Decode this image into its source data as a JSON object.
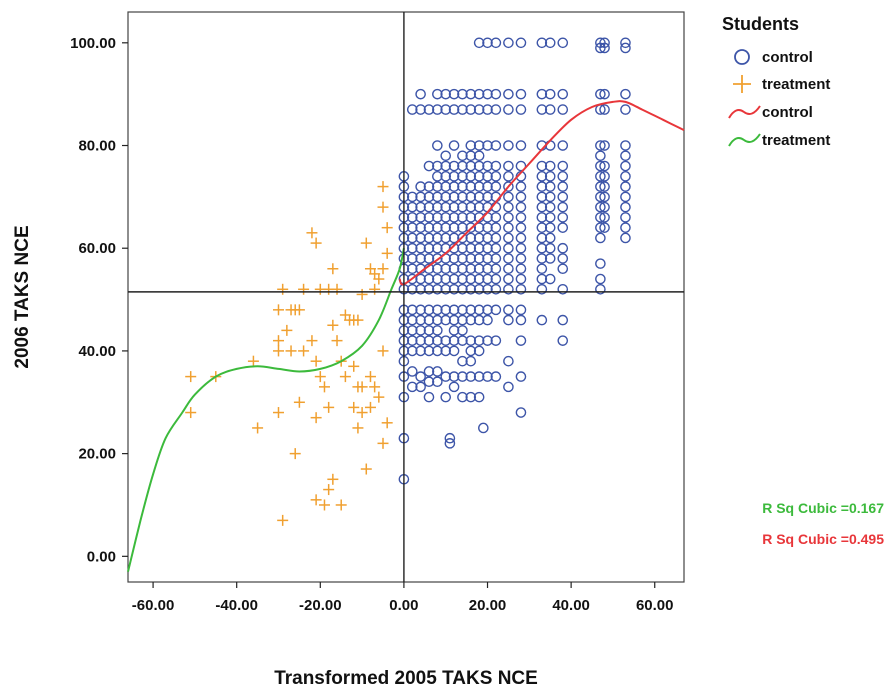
{
  "chart_data": {
    "type": "scatter",
    "xlabel": "Transformed 2005 TAKS NCE",
    "ylabel": "2006 TAKS NCE",
    "xlim": [
      -66,
      67
    ],
    "ylim": [
      -5,
      106
    ],
    "x_ticks": [
      -60,
      -40,
      -20,
      0,
      20,
      40,
      60
    ],
    "y_ticks": [
      0,
      20,
      40,
      60,
      80,
      100
    ],
    "x_tick_labels": [
      "-60.00",
      "-40.00",
      "-20.00",
      "0.00",
      "20.00",
      "40.00",
      "60.00"
    ],
    "y_tick_labels": [
      "0.00",
      "20.00",
      "40.00",
      "60.00",
      "80.00",
      "100.00"
    ],
    "reference_lines": {
      "x": 0,
      "y": 51.5
    },
    "grid": false,
    "legend": {
      "title": "Students",
      "placement": "right",
      "items": [
        {
          "label": "control",
          "marker": "circle",
          "color": "#3d55a8"
        },
        {
          "label": "treatment",
          "marker": "plus",
          "color": "#f0a030"
        },
        {
          "label": "control",
          "marker": "line",
          "color": "#e8363a"
        },
        {
          "label": "treatment",
          "marker": "line",
          "color": "#3cba3c"
        }
      ]
    },
    "annotations": [
      {
        "text": "R Sq Cubic =0.167",
        "color": "#3cba3c"
      },
      {
        "text": "R Sq Cubic =0.495",
        "color": "#e8363a"
      }
    ],
    "colors": {
      "control": "#3d55a8",
      "treatment": "#f0a030",
      "control_fit": "#e8363a",
      "treatment_fit": "#3cba3c"
    },
    "series": [
      {
        "name": "control",
        "marker": "circle",
        "columns": [
          {
            "x": 0,
            "y": [
              15,
              23,
              31,
              35,
              38,
              40,
              42,
              44,
              46,
              48,
              52,
              54,
              56,
              58,
              60,
              62,
              64,
              66,
              68,
              70,
              72,
              74
            ]
          },
          {
            "x": 2,
            "y": [
              33,
              36,
              40,
              42,
              44,
              46,
              48,
              52,
              54,
              56,
              58,
              60,
              62,
              64,
              66,
              68,
              70,
              87
            ]
          },
          {
            "x": 4,
            "y": [
              33,
              35,
              40,
              42,
              44,
              46,
              48,
              52,
              54,
              56,
              58,
              60,
              62,
              64,
              66,
              68,
              70,
              72,
              87,
              90
            ]
          },
          {
            "x": 6,
            "y": [
              31,
              34,
              36,
              40,
              42,
              44,
              46,
              48,
              52,
              54,
              56,
              58,
              60,
              62,
              64,
              66,
              68,
              70,
              72,
              76,
              87
            ]
          },
          {
            "x": 8,
            "y": [
              34,
              36,
              40,
              42,
              44,
              46,
              48,
              52,
              54,
              56,
              58,
              60,
              62,
              64,
              66,
              68,
              70,
              72,
              74,
              76,
              80,
              87,
              90
            ]
          },
          {
            "x": 10,
            "y": [
              31,
              35,
              40,
              42,
              46,
              48,
              52,
              54,
              56,
              58,
              60,
              62,
              64,
              66,
              68,
              70,
              72,
              74,
              76,
              78,
              87,
              90
            ]
          },
          {
            "x": 11,
            "y": [
              22,
              23
            ]
          },
          {
            "x": 12,
            "y": [
              33,
              35,
              40,
              42,
              44,
              46,
              48,
              52,
              54,
              56,
              58,
              60,
              62,
              64,
              66,
              68,
              70,
              72,
              74,
              76,
              80,
              87,
              90
            ]
          },
          {
            "x": 14,
            "y": [
              31,
              35,
              38,
              42,
              44,
              46,
              48,
              52,
              54,
              56,
              58,
              60,
              62,
              64,
              66,
              68,
              70,
              72,
              74,
              76,
              78,
              87,
              90
            ]
          },
          {
            "x": 16,
            "y": [
              31,
              35,
              38,
              40,
              42,
              46,
              48,
              52,
              54,
              56,
              58,
              60,
              62,
              64,
              66,
              68,
              70,
              72,
              74,
              76,
              78,
              80,
              87,
              90
            ]
          },
          {
            "x": 18,
            "y": [
              31,
              35,
              40,
              42,
              46,
              48,
              52,
              54,
              56,
              58,
              60,
              62,
              64,
              66,
              68,
              70,
              72,
              74,
              76,
              78,
              80,
              87,
              90,
              100
            ]
          },
          {
            "x": 19,
            "y": [
              25
            ]
          },
          {
            "x": 20,
            "y": [
              35,
              42,
              46,
              48,
              52,
              54,
              56,
              58,
              60,
              62,
              64,
              66,
              68,
              70,
              72,
              74,
              76,
              80,
              87,
              90,
              100
            ]
          },
          {
            "x": 22,
            "y": [
              35,
              42,
              48,
              52,
              54,
              56,
              58,
              60,
              62,
              64,
              66,
              68,
              70,
              72,
              74,
              76,
              80,
              87,
              90,
              100
            ]
          },
          {
            "x": 25,
            "y": [
              33,
              38,
              46,
              48,
              52,
              54,
              56,
              58,
              60,
              62,
              64,
              66,
              68,
              70,
              72,
              74,
              76,
              80,
              87,
              90,
              100
            ]
          },
          {
            "x": 28,
            "y": [
              28,
              35,
              42,
              46,
              48,
              52,
              54,
              56,
              58,
              60,
              62,
              64,
              66,
              68,
              70,
              72,
              74,
              76,
              80,
              87,
              90,
              100
            ]
          },
          {
            "x": 33,
            "y": [
              46,
              52,
              54,
              56,
              58,
              60,
              62,
              64,
              66,
              68,
              70,
              72,
              74,
              76,
              80,
              87,
              90,
              100
            ]
          },
          {
            "x": 35,
            "y": [
              54,
              58,
              60,
              62,
              64,
              66,
              68,
              70,
              72,
              74,
              76,
              80,
              87,
              90,
              100
            ]
          },
          {
            "x": 38,
            "y": [
              42,
              46,
              52,
              56,
              58,
              60,
              64,
              66,
              68,
              70,
              72,
              74,
              76,
              80,
              87,
              90,
              100
            ]
          },
          {
            "x": 47,
            "y": [
              52,
              54,
              57,
              62,
              64,
              66,
              68,
              70,
              72,
              74,
              76,
              78,
              80,
              87,
              90,
              99,
              100
            ]
          },
          {
            "x": 48,
            "y": [
              64,
              66,
              68,
              70,
              72,
              74,
              76,
              80,
              87,
              90,
              99,
              100
            ]
          },
          {
            "x": 53,
            "y": [
              62,
              64,
              66,
              68,
              70,
              72,
              74,
              76,
              78,
              80,
              87,
              90,
              99,
              100
            ]
          }
        ]
      },
      {
        "name": "treatment",
        "marker": "plus",
        "points": [
          [
            -5,
            72
          ],
          [
            -5,
            68
          ],
          [
            -4,
            64
          ],
          [
            -4,
            59
          ],
          [
            -5,
            56
          ],
          [
            -6,
            54
          ],
          [
            -7,
            55
          ],
          [
            -8,
            56
          ],
          [
            -7,
            52
          ],
          [
            -9,
            61
          ],
          [
            -10,
            51
          ],
          [
            -11,
            46
          ],
          [
            -12,
            46
          ],
          [
            -13,
            46
          ],
          [
            -14,
            47
          ],
          [
            -16,
            52
          ],
          [
            -17,
            56
          ],
          [
            -18,
            52
          ],
          [
            -20,
            52
          ],
          [
            -21,
            61
          ],
          [
            -22,
            63
          ],
          [
            -24,
            52
          ],
          [
            -25,
            48
          ],
          [
            -26,
            48
          ],
          [
            -27,
            48
          ],
          [
            -29,
            52
          ],
          [
            -30,
            48
          ],
          [
            -28,
            44
          ],
          [
            -30,
            42
          ],
          [
            -30,
            40
          ],
          [
            -27,
            40
          ],
          [
            -24,
            40
          ],
          [
            -22,
            42
          ],
          [
            -21,
            38
          ],
          [
            -20,
            35
          ],
          [
            -19,
            33
          ],
          [
            -17,
            45
          ],
          [
            -16,
            42
          ],
          [
            -15,
            38
          ],
          [
            -14,
            35
          ],
          [
            -12,
            37
          ],
          [
            -11,
            33
          ],
          [
            -10,
            33
          ],
          [
            -8,
            35
          ],
          [
            -7,
            33
          ],
          [
            -6,
            31
          ],
          [
            -5,
            40
          ],
          [
            -4,
            26
          ],
          [
            -8,
            29
          ],
          [
            -10,
            28
          ],
          [
            -12,
            29
          ],
          [
            -11,
            25
          ],
          [
            -18,
            29
          ],
          [
            -21,
            27
          ],
          [
            -25,
            30
          ],
          [
            -26,
            20
          ],
          [
            -30,
            28
          ],
          [
            -35,
            25
          ],
          [
            -18,
            13
          ],
          [
            -19,
            10
          ],
          [
            -17,
            15
          ],
          [
            -15,
            10
          ],
          [
            -21,
            11
          ],
          [
            -9,
            17
          ],
          [
            -5,
            22
          ],
          [
            -29,
            7
          ],
          [
            -36,
            38
          ],
          [
            -45,
            35
          ],
          [
            -51,
            35
          ],
          [
            -51,
            28
          ]
        ]
      }
    ],
    "fit_lines": [
      {
        "name": "control",
        "model": "cubic",
        "points": [
          [
            -1,
            54
          ],
          [
            0,
            53
          ],
          [
            5,
            56
          ],
          [
            10,
            59
          ],
          [
            15,
            63
          ],
          [
            20,
            67
          ],
          [
            25,
            72
          ],
          [
            30,
            76.5
          ],
          [
            35,
            81
          ],
          [
            40,
            85
          ],
          [
            45,
            87.5
          ],
          [
            50,
            88.5
          ],
          [
            53,
            88.5
          ],
          [
            57,
            87
          ],
          [
            62,
            85
          ],
          [
            67,
            83
          ]
        ]
      },
      {
        "name": "treatment",
        "model": "cubic",
        "points": [
          [
            -66,
            -3
          ],
          [
            -63,
            7
          ],
          [
            -60,
            16
          ],
          [
            -57,
            23
          ],
          [
            -53,
            28
          ],
          [
            -50,
            31.5
          ],
          [
            -45,
            35
          ],
          [
            -40,
            36.5
          ],
          [
            -35,
            37
          ],
          [
            -30,
            36.5
          ],
          [
            -25,
            36
          ],
          [
            -20,
            36.5
          ],
          [
            -15,
            38
          ],
          [
            -10,
            41
          ],
          [
            -6,
            46
          ],
          [
            -3,
            52
          ],
          [
            -1,
            56
          ],
          [
            0,
            60
          ]
        ]
      }
    ]
  }
}
